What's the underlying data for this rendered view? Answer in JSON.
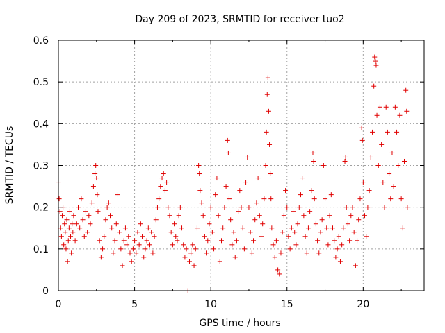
{
  "chart_data": {
    "type": "scatter",
    "title": "Day 209 of 2023, SRMTID for receiver tuo2",
    "xlabel": "GPS time / hours",
    "ylabel": "SRMTID / TECUs",
    "xlim": [
      0,
      24
    ],
    "ylim": [
      0,
      0.6
    ],
    "xticks": [
      0,
      5,
      10,
      15,
      20
    ],
    "yticks": [
      0,
      0.1,
      0.2,
      0.3,
      0.4,
      0.5,
      0.6
    ],
    "xtick_labels": [
      "0",
      "5",
      "10",
      "15",
      "20"
    ],
    "ytick_labels": [
      "0",
      "0.1",
      "0.2",
      "0.3",
      "0.4",
      "0.5",
      "0.6"
    ],
    "grid": true,
    "marker": "+",
    "color": "#e00000",
    "series": [
      {
        "name": "SRMTID",
        "points": [
          [
            0.0,
            0.26
          ],
          [
            0.05,
            0.22
          ],
          [
            0.1,
            0.19
          ],
          [
            0.15,
            0.15
          ],
          [
            0.2,
            0.13
          ],
          [
            0.25,
            0.18
          ],
          [
            0.3,
            0.2
          ],
          [
            0.35,
            0.11
          ],
          [
            0.4,
            0.16
          ],
          [
            0.45,
            0.14
          ],
          [
            0.5,
            0.1
          ],
          [
            0.55,
            0.17
          ],
          [
            0.6,
            0.07
          ],
          [
            0.65,
            0.12
          ],
          [
            0.7,
            0.15
          ],
          [
            0.75,
            0.19
          ],
          [
            0.8,
            0.13
          ],
          [
            0.85,
            0.09
          ],
          [
            0.9,
            0.16
          ],
          [
            0.95,
            0.14
          ],
          [
            1.0,
            0.18
          ],
          [
            1.1,
            0.12
          ],
          [
            1.2,
            0.16
          ],
          [
            1.3,
            0.2
          ],
          [
            1.4,
            0.15
          ],
          [
            1.5,
            0.22
          ],
          [
            1.6,
            0.17
          ],
          [
            1.7,
            0.13
          ],
          [
            1.8,
            0.19
          ],
          [
            1.9,
            0.14
          ],
          [
            2.0,
            0.18
          ],
          [
            2.1,
            0.16
          ],
          [
            2.2,
            0.21
          ],
          [
            2.3,
            0.25
          ],
          [
            2.4,
            0.28
          ],
          [
            2.45,
            0.3
          ],
          [
            2.5,
            0.27
          ],
          [
            2.55,
            0.23
          ],
          [
            2.6,
            0.19
          ],
          [
            2.7,
            0.12
          ],
          [
            2.8,
            0.08
          ],
          [
            2.9,
            0.1
          ],
          [
            3.0,
            0.13
          ],
          [
            3.1,
            0.17
          ],
          [
            3.2,
            0.2
          ],
          [
            3.3,
            0.21
          ],
          [
            3.4,
            0.18
          ],
          [
            3.5,
            0.15
          ],
          [
            3.6,
            0.09
          ],
          [
            3.7,
            0.12
          ],
          [
            3.8,
            0.16
          ],
          [
            3.9,
            0.23
          ],
          [
            4.0,
            0.14
          ],
          [
            4.1,
            0.1
          ],
          [
            4.2,
            0.06
          ],
          [
            4.3,
            0.12
          ],
          [
            4.4,
            0.15
          ],
          [
            4.5,
            0.11
          ],
          [
            4.6,
            0.13
          ],
          [
            4.7,
            0.09
          ],
          [
            4.8,
            0.07
          ],
          [
            4.9,
            0.1
          ],
          [
            5.0,
            0.12
          ],
          [
            5.1,
            0.09
          ],
          [
            5.2,
            0.14
          ],
          [
            5.3,
            0.11
          ],
          [
            5.4,
            0.16
          ],
          [
            5.5,
            0.13
          ],
          [
            5.6,
            0.08
          ],
          [
            5.7,
            0.1
          ],
          [
            5.8,
            0.12
          ],
          [
            5.9,
            0.15
          ],
          [
            6.0,
            0.11
          ],
          [
            6.1,
            0.14
          ],
          [
            6.2,
            0.09
          ],
          [
            6.3,
            0.13
          ],
          [
            6.4,
            0.17
          ],
          [
            6.5,
            0.2
          ],
          [
            6.6,
            0.22
          ],
          [
            6.7,
            0.25
          ],
          [
            6.8,
            0.27
          ],
          [
            6.9,
            0.28
          ],
          [
            7.0,
            0.24
          ],
          [
            7.1,
            0.26
          ],
          [
            7.2,
            0.2
          ],
          [
            7.3,
            0.18
          ],
          [
            7.4,
            0.14
          ],
          [
            7.5,
            0.11
          ],
          [
            7.6,
            0.16
          ],
          [
            7.7,
            0.13
          ],
          [
            7.8,
            0.12
          ],
          [
            7.9,
            0.18
          ],
          [
            8.0,
            0.2
          ],
          [
            8.1,
            0.15
          ],
          [
            8.2,
            0.11
          ],
          [
            8.3,
            0.08
          ],
          [
            8.4,
            0.1
          ],
          [
            8.5,
            0.0
          ],
          [
            8.6,
            0.07
          ],
          [
            8.7,
            0.09
          ],
          [
            8.8,
            0.11
          ],
          [
            8.9,
            0.06
          ],
          [
            9.0,
            0.1
          ],
          [
            9.1,
            0.15
          ],
          [
            9.2,
            0.3
          ],
          [
            9.25,
            0.28
          ],
          [
            9.3,
            0.24
          ],
          [
            9.4,
            0.21
          ],
          [
            9.5,
            0.18
          ],
          [
            9.6,
            0.13
          ],
          [
            9.7,
            0.09
          ],
          [
            9.8,
            0.12
          ],
          [
            9.9,
            0.16
          ],
          [
            10.0,
            0.2
          ],
          [
            10.1,
            0.14
          ],
          [
            10.2,
            0.1
          ],
          [
            10.3,
            0.23
          ],
          [
            10.4,
            0.27
          ],
          [
            10.5,
            0.18
          ],
          [
            10.6,
            0.07
          ],
          [
            10.7,
            0.12
          ],
          [
            10.8,
            0.15
          ],
          [
            10.9,
            0.2
          ],
          [
            11.0,
            0.25
          ],
          [
            11.1,
            0.36
          ],
          [
            11.15,
            0.33
          ],
          [
            11.2,
            0.22
          ],
          [
            11.3,
            0.17
          ],
          [
            11.4,
            0.11
          ],
          [
            11.5,
            0.14
          ],
          [
            11.6,
            0.08
          ],
          [
            11.7,
            0.12
          ],
          [
            11.8,
            0.19
          ],
          [
            11.9,
            0.24
          ],
          [
            12.0,
            0.2
          ],
          [
            12.1,
            0.15
          ],
          [
            12.2,
            0.1
          ],
          [
            12.3,
            0.26
          ],
          [
            12.4,
            0.32
          ],
          [
            12.5,
            0.2
          ],
          [
            12.6,
            0.14
          ],
          [
            12.7,
            0.09
          ],
          [
            12.8,
            0.12
          ],
          [
            12.9,
            0.17
          ],
          [
            13.0,
            0.21
          ],
          [
            13.1,
            0.27
          ],
          [
            13.2,
            0.18
          ],
          [
            13.3,
            0.13
          ],
          [
            13.4,
            0.16
          ],
          [
            13.5,
            0.22
          ],
          [
            13.6,
            0.3
          ],
          [
            13.65,
            0.38
          ],
          [
            13.7,
            0.47
          ],
          [
            13.75,
            0.51
          ],
          [
            13.8,
            0.43
          ],
          [
            13.85,
            0.35
          ],
          [
            13.9,
            0.28
          ],
          [
            13.95,
            0.22
          ],
          [
            14.0,
            0.15
          ],
          [
            14.1,
            0.11
          ],
          [
            14.2,
            0.08
          ],
          [
            14.3,
            0.12
          ],
          [
            14.4,
            0.05
          ],
          [
            14.5,
            0.04
          ],
          [
            14.6,
            0.09
          ],
          [
            14.7,
            0.14
          ],
          [
            14.8,
            0.18
          ],
          [
            14.9,
            0.24
          ],
          [
            15.0,
            0.2
          ],
          [
            15.1,
            0.13
          ],
          [
            15.2,
            0.1
          ],
          [
            15.3,
            0.15
          ],
          [
            15.4,
            0.19
          ],
          [
            15.5,
            0.14
          ],
          [
            15.6,
            0.11
          ],
          [
            15.7,
            0.16
          ],
          [
            15.8,
            0.2
          ],
          [
            15.9,
            0.23
          ],
          [
            16.0,
            0.27
          ],
          [
            16.1,
            0.18
          ],
          [
            16.2,
            0.13
          ],
          [
            16.3,
            0.09
          ],
          [
            16.4,
            0.15
          ],
          [
            16.5,
            0.19
          ],
          [
            16.6,
            0.24
          ],
          [
            16.7,
            0.33
          ],
          [
            16.75,
            0.31
          ],
          [
            16.8,
            0.22
          ],
          [
            16.9,
            0.16
          ],
          [
            17.0,
            0.12
          ],
          [
            17.1,
            0.09
          ],
          [
            17.2,
            0.14
          ],
          [
            17.3,
            0.17
          ],
          [
            17.4,
            0.3
          ],
          [
            17.5,
            0.22
          ],
          [
            17.6,
            0.15
          ],
          [
            17.7,
            0.11
          ],
          [
            17.8,
            0.18
          ],
          [
            17.9,
            0.23
          ],
          [
            18.0,
            0.15
          ],
          [
            18.1,
            0.12
          ],
          [
            18.2,
            0.08
          ],
          [
            18.3,
            0.1
          ],
          [
            18.4,
            0.13
          ],
          [
            18.5,
            0.07
          ],
          [
            18.6,
            0.11
          ],
          [
            18.7,
            0.15
          ],
          [
            18.8,
            0.31
          ],
          [
            18.85,
            0.32
          ],
          [
            18.9,
            0.2
          ],
          [
            19.0,
            0.16
          ],
          [
            19.1,
            0.12
          ],
          [
            19.2,
            0.18
          ],
          [
            19.3,
            0.2
          ],
          [
            19.4,
            0.14
          ],
          [
            19.5,
            0.06
          ],
          [
            19.6,
            0.12
          ],
          [
            19.7,
            0.17
          ],
          [
            19.8,
            0.22
          ],
          [
            19.9,
            0.39
          ],
          [
            19.95,
            0.36
          ],
          [
            20.0,
            0.26
          ],
          [
            20.1,
            0.18
          ],
          [
            20.2,
            0.13
          ],
          [
            20.3,
            0.2
          ],
          [
            20.4,
            0.24
          ],
          [
            20.5,
            0.32
          ],
          [
            20.6,
            0.38
          ],
          [
            20.7,
            0.49
          ],
          [
            20.75,
            0.56
          ],
          [
            20.8,
            0.55
          ],
          [
            20.85,
            0.54
          ],
          [
            20.9,
            0.42
          ],
          [
            21.0,
            0.3
          ],
          [
            21.1,
            0.44
          ],
          [
            21.2,
            0.35
          ],
          [
            21.3,
            0.26
          ],
          [
            21.4,
            0.2
          ],
          [
            21.5,
            0.44
          ],
          [
            21.6,
            0.38
          ],
          [
            21.7,
            0.28
          ],
          [
            21.8,
            0.22
          ],
          [
            21.9,
            0.33
          ],
          [
            22.0,
            0.25
          ],
          [
            22.1,
            0.44
          ],
          [
            22.2,
            0.38
          ],
          [
            22.3,
            0.3
          ],
          [
            22.4,
            0.42
          ],
          [
            22.5,
            0.22
          ],
          [
            22.6,
            0.15
          ],
          [
            22.7,
            0.31
          ],
          [
            22.8,
            0.48
          ],
          [
            22.85,
            0.43
          ],
          [
            22.9,
            0.2
          ]
        ]
      }
    ]
  }
}
